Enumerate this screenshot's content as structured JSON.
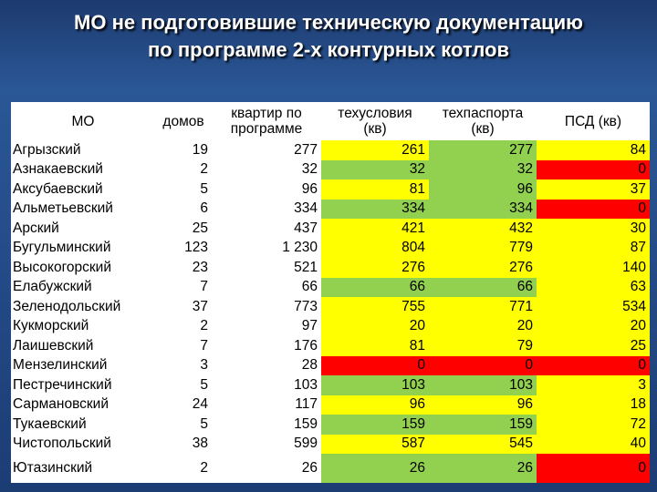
{
  "title": [
    "МО не подготовившие техническую документацию",
    "по программе 2-х контурных котлов"
  ],
  "table": {
    "header": [
      "МО",
      "домов",
      "квартир по\nпрограмме",
      "техусловия\n(кв)",
      "техпаспорта\n(кв)",
      "ПСД (кв)"
    ],
    "rows": [
      [
        "Агрызский",
        "19",
        "277",
        "261",
        "277",
        "84"
      ],
      [
        "Азнакаевский",
        "2",
        "32",
        "32",
        "32",
        "0"
      ],
      [
        "Аксубаевский",
        "5",
        "96",
        "81",
        "96",
        "37"
      ],
      [
        "Альметьевский",
        "6",
        "334",
        "334",
        "334",
        "0"
      ],
      [
        "Арский",
        "25",
        "437",
        "421",
        "432",
        "30"
      ],
      [
        "Бугульминский",
        "123",
        "1 230",
        "804",
        "779",
        "87"
      ],
      [
        "Высокогорский",
        "23",
        "521",
        "276",
        "276",
        "140"
      ],
      [
        "Елабужский",
        "7",
        "66",
        "66",
        "66",
        "63"
      ],
      [
        "Зеленодольский",
        "37",
        "773",
        "755",
        "771",
        "534"
      ],
      [
        "Кукморский",
        "2",
        "97",
        "20",
        "20",
        "20"
      ],
      [
        "Лаишевский",
        "7",
        "176",
        "81",
        "79",
        "25"
      ],
      [
        "Мензелинский",
        "3",
        "28",
        "0",
        "0",
        "0"
      ],
      [
        "Пестречинский",
        "5",
        "103",
        "103",
        "103",
        "3"
      ],
      [
        "Сармановский",
        "24",
        "117",
        "96",
        "96",
        "18"
      ],
      [
        "Тукаевский",
        "5",
        "159",
        "159",
        "159",
        "72"
      ],
      [
        "Чистопольский",
        "38",
        "599",
        "587",
        "545",
        "40"
      ],
      [
        "Ютазинский",
        "2",
        "26",
        "26",
        "26",
        "0"
      ]
    ],
    "cell_colors": [
      [
        "#ffff00",
        "#92d050",
        "#ffff00"
      ],
      [
        "#92d050",
        "#92d050",
        "#ff0000"
      ],
      [
        "#ffff00",
        "#92d050",
        "#ffff00"
      ],
      [
        "#92d050",
        "#92d050",
        "#ff0000"
      ],
      [
        "#ffff00",
        "#ffff00",
        "#ffff00"
      ],
      [
        "#ffff00",
        "#ffff00",
        "#ffff00"
      ],
      [
        "#ffff00",
        "#ffff00",
        "#ffff00"
      ],
      [
        "#92d050",
        "#92d050",
        "#ffff00"
      ],
      [
        "#ffff00",
        "#ffff00",
        "#ffff00"
      ],
      [
        "#ffff00",
        "#ffff00",
        "#ffff00"
      ],
      [
        "#ffff00",
        "#ffff00",
        "#ffff00"
      ],
      [
        "#ff0000",
        "#ff0000",
        "#ff0000"
      ],
      [
        "#92d050",
        "#92d050",
        "#ffff00"
      ],
      [
        "#ffff00",
        "#ffff00",
        "#ffff00"
      ],
      [
        "#92d050",
        "#92d050",
        "#ffff00"
      ],
      [
        "#ffff00",
        "#ffff00",
        "#ffff00"
      ],
      [
        "#92d050",
        "#92d050",
        "#ff0000"
      ]
    ]
  }
}
